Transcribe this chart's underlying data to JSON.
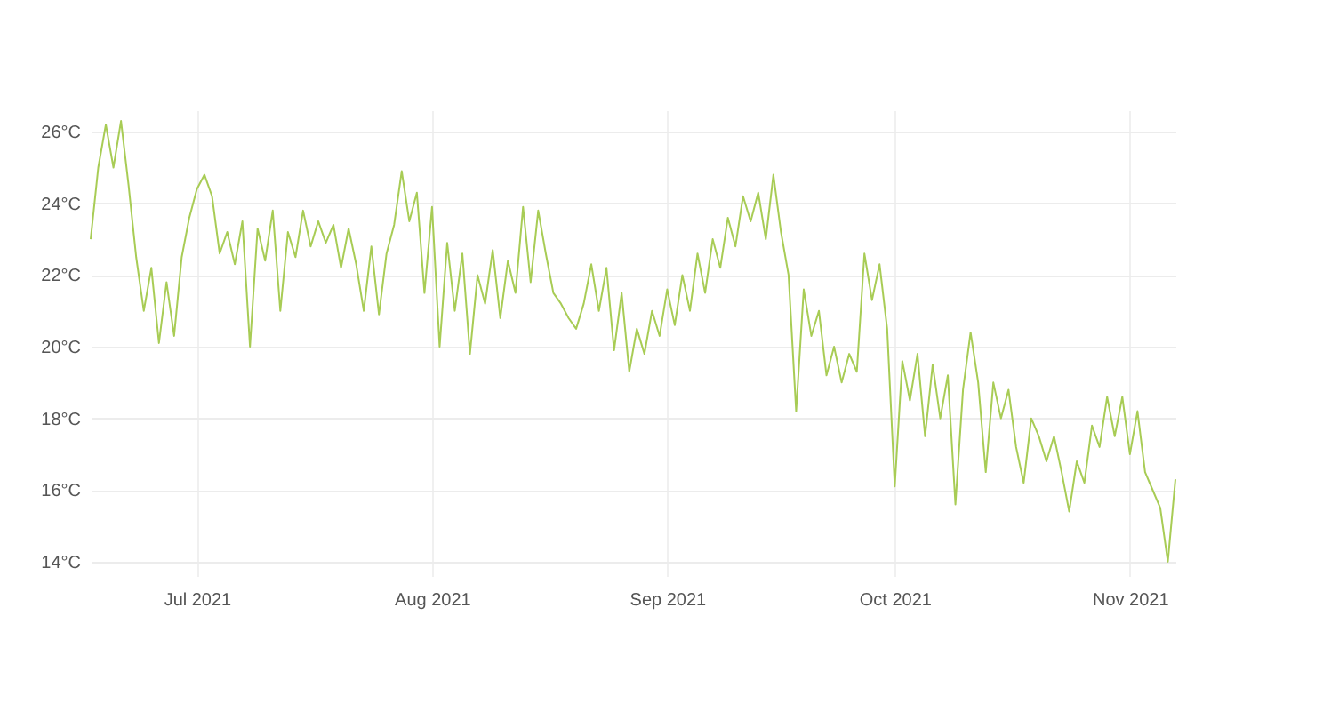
{
  "chart_data": {
    "type": "line",
    "x": [
      "2021-06-17",
      "2021-06-18",
      "2021-06-19",
      "2021-06-20",
      "2021-06-21",
      "2021-06-22",
      "2021-06-23",
      "2021-06-24",
      "2021-06-25",
      "2021-06-26",
      "2021-06-27",
      "2021-06-28",
      "2021-06-29",
      "2021-06-30",
      "2021-07-01",
      "2021-07-02",
      "2021-07-03",
      "2021-07-04",
      "2021-07-05",
      "2021-07-06",
      "2021-07-07",
      "2021-07-08",
      "2021-07-09",
      "2021-07-10",
      "2021-07-11",
      "2021-07-12",
      "2021-07-13",
      "2021-07-14",
      "2021-07-15",
      "2021-07-16",
      "2021-07-17",
      "2021-07-18",
      "2021-07-19",
      "2021-07-20",
      "2021-07-21",
      "2021-07-22",
      "2021-07-23",
      "2021-07-24",
      "2021-07-25",
      "2021-07-26",
      "2021-07-27",
      "2021-07-28",
      "2021-07-29",
      "2021-07-30",
      "2021-07-31",
      "2021-08-01",
      "2021-08-02",
      "2021-08-03",
      "2021-08-04",
      "2021-08-05",
      "2021-08-06",
      "2021-08-07",
      "2021-08-08",
      "2021-08-09",
      "2021-08-10",
      "2021-08-11",
      "2021-08-12",
      "2021-08-13",
      "2021-08-14",
      "2021-08-15",
      "2021-08-16",
      "2021-08-17",
      "2021-08-18",
      "2021-08-19",
      "2021-08-20",
      "2021-08-21",
      "2021-08-22",
      "2021-08-23",
      "2021-08-24",
      "2021-08-25",
      "2021-08-26",
      "2021-08-27",
      "2021-08-28",
      "2021-08-29",
      "2021-08-30",
      "2021-08-31",
      "2021-09-01",
      "2021-09-02",
      "2021-09-03",
      "2021-09-04",
      "2021-09-05",
      "2021-09-06",
      "2021-09-07",
      "2021-09-08",
      "2021-09-09",
      "2021-09-10",
      "2021-09-11",
      "2021-09-12",
      "2021-09-13",
      "2021-09-14",
      "2021-09-15",
      "2021-09-16",
      "2021-09-17",
      "2021-09-18",
      "2021-09-19",
      "2021-09-20",
      "2021-09-21",
      "2021-09-22",
      "2021-09-23",
      "2021-09-24",
      "2021-09-25",
      "2021-09-26",
      "2021-09-27",
      "2021-09-28",
      "2021-09-29",
      "2021-09-30",
      "2021-10-01",
      "2021-10-02",
      "2021-10-03",
      "2021-10-04",
      "2021-10-05",
      "2021-10-06",
      "2021-10-07",
      "2021-10-08",
      "2021-10-09",
      "2021-10-10",
      "2021-10-11",
      "2021-10-12",
      "2021-10-13",
      "2021-10-14",
      "2021-10-15",
      "2021-10-16",
      "2021-10-17",
      "2021-10-18",
      "2021-10-19",
      "2021-10-20",
      "2021-10-21",
      "2021-10-22",
      "2021-10-23",
      "2021-10-24",
      "2021-10-25",
      "2021-10-26",
      "2021-10-27",
      "2021-10-28",
      "2021-10-29",
      "2021-10-30",
      "2021-10-31",
      "2021-11-01",
      "2021-11-02",
      "2021-11-03",
      "2021-11-04",
      "2021-11-05",
      "2021-11-06",
      "2021-11-07"
    ],
    "series": [
      {
        "color": "#a8cc55",
        "values": [
          23.0,
          25.0,
          26.2,
          25.0,
          26.3,
          24.5,
          22.5,
          21.0,
          22.2,
          20.1,
          21.8,
          20.3,
          22.5,
          23.6,
          24.4,
          24.8,
          24.2,
          22.6,
          23.2,
          22.3,
          23.5,
          20.0,
          23.3,
          22.4,
          23.8,
          21.0,
          23.2,
          22.5,
          23.8,
          22.8,
          23.5,
          22.9,
          23.4,
          22.2,
          23.3,
          22.3,
          21.0,
          22.8,
          20.9,
          22.6,
          23.4,
          24.9,
          23.5,
          24.3,
          21.5,
          23.9,
          20.0,
          22.9,
          21.0,
          22.6,
          19.8,
          22.0,
          21.2,
          22.7,
          20.8,
          22.4,
          21.5,
          23.9,
          21.8,
          23.8,
          22.6,
          21.5,
          21.2,
          20.8,
          20.5,
          21.2,
          22.3,
          21.0,
          22.2,
          19.9,
          21.5,
          19.3,
          20.5,
          19.8,
          21.0,
          20.3,
          21.6,
          20.6,
          22.0,
          21.0,
          22.6,
          21.5,
          23.0,
          22.2,
          23.6,
          22.8,
          24.2,
          23.5,
          24.3,
          23.0,
          24.8,
          23.2,
          22.0,
          18.2,
          21.6,
          20.3,
          21.0,
          19.2,
          20.0,
          19.0,
          19.8,
          19.3,
          22.6,
          21.3,
          22.3,
          20.5,
          16.1,
          19.6,
          18.5,
          19.8,
          17.5,
          19.5,
          18.0,
          19.2,
          15.6,
          18.8,
          20.4,
          19.0,
          16.5,
          19.0,
          18.0,
          18.8,
          17.2,
          16.2,
          18.0,
          17.5,
          16.8,
          17.5,
          16.5,
          15.4,
          16.8,
          16.2,
          17.8,
          17.2,
          18.6,
          17.5,
          18.6,
          17.0,
          18.2,
          16.5,
          16.0,
          15.5,
          14.0,
          16.3
        ]
      }
    ],
    "xlim": [
      "2021-06-17",
      "2021-11-07"
    ],
    "xticks": [
      {
        "value": "2021-07-01",
        "label": "Jul 2021"
      },
      {
        "value": "2021-08-01",
        "label": "Aug 2021"
      },
      {
        "value": "2021-09-01",
        "label": "Sep 2021"
      },
      {
        "value": "2021-10-01",
        "label": "Oct 2021"
      },
      {
        "value": "2021-11-01",
        "label": "Nov 2021"
      }
    ],
    "ylim": [
      13.6,
      26.6
    ],
    "yticks": [
      {
        "value": 14,
        "label": "14°C"
      },
      {
        "value": 16,
        "label": "16°C"
      },
      {
        "value": 18,
        "label": "18°C"
      },
      {
        "value": 20,
        "label": "20°C"
      },
      {
        "value": 22,
        "label": "22°C"
      },
      {
        "value": 24,
        "label": "24°C"
      },
      {
        "value": 26,
        "label": "26°C"
      }
    ],
    "grid": true,
    "marker": "none",
    "line_style": "solid"
  }
}
